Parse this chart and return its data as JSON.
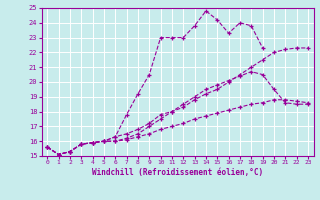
{
  "xlabel": "Windchill (Refroidissement éolien,°C)",
  "xlim": [
    -0.5,
    23.5
  ],
  "ylim": [
    15,
    25
  ],
  "xticks": [
    0,
    1,
    2,
    3,
    4,
    5,
    6,
    7,
    8,
    9,
    10,
    11,
    12,
    13,
    14,
    15,
    16,
    17,
    18,
    19,
    20,
    21,
    22,
    23
  ],
  "yticks": [
    15,
    16,
    17,
    18,
    19,
    20,
    21,
    22,
    23,
    24,
    25
  ],
  "background_color": "#c8ecec",
  "grid_color": "#ffffff",
  "line_color": "#990099",
  "lines": [
    {
      "x": [
        0,
        1,
        2,
        3,
        4,
        5,
        6,
        7,
        8,
        9,
        10,
        11,
        12,
        13,
        14,
        15,
        16,
        17,
        18,
        19,
        20,
        21,
        22,
        23
      ],
      "y": [
        15.6,
        15.1,
        15.3,
        15.8,
        15.9,
        16.0,
        16.3,
        17.8,
        19.2,
        20.5,
        23.0,
        23.0,
        23.0,
        23.8,
        24.8,
        24.2,
        23.3,
        24.0,
        23.8,
        22.3,
        null,
        null,
        null,
        null
      ]
    },
    {
      "x": [
        0,
        1,
        2,
        3,
        4,
        5,
        6,
        7,
        8,
        9,
        10,
        11,
        12,
        13,
        14,
        15,
        16,
        17,
        18,
        19,
        20,
        21,
        22,
        23
      ],
      "y": [
        15.6,
        15.1,
        15.3,
        15.8,
        15.9,
        16.0,
        16.0,
        16.1,
        16.3,
        16.5,
        16.8,
        17.0,
        17.2,
        17.5,
        17.7,
        17.9,
        18.1,
        18.3,
        18.5,
        18.6,
        18.8,
        18.8,
        18.7,
        18.6
      ]
    },
    {
      "x": [
        0,
        1,
        2,
        3,
        4,
        5,
        6,
        7,
        8,
        9,
        10,
        11,
        12,
        13,
        14,
        15,
        16,
        17,
        18,
        19,
        20,
        21,
        22,
        23
      ],
      "y": [
        15.6,
        15.1,
        15.3,
        15.8,
        15.9,
        16.0,
        16.0,
        16.2,
        16.5,
        17.0,
        17.5,
        18.0,
        18.5,
        19.0,
        19.5,
        19.8,
        20.1,
        20.4,
        20.7,
        20.5,
        19.5,
        18.6,
        18.5,
        18.5
      ]
    },
    {
      "x": [
        0,
        1,
        2,
        3,
        4,
        5,
        6,
        7,
        8,
        9,
        10,
        11,
        12,
        13,
        14,
        15,
        16,
        17,
        18,
        19,
        20,
        21,
        22,
        23
      ],
      "y": [
        15.6,
        15.1,
        15.3,
        15.8,
        15.9,
        16.0,
        16.3,
        16.5,
        16.8,
        17.2,
        17.8,
        18.0,
        18.3,
        18.8,
        19.2,
        19.5,
        20.0,
        20.5,
        21.0,
        21.5,
        22.0,
        22.2,
        22.3,
        22.3
      ]
    }
  ]
}
